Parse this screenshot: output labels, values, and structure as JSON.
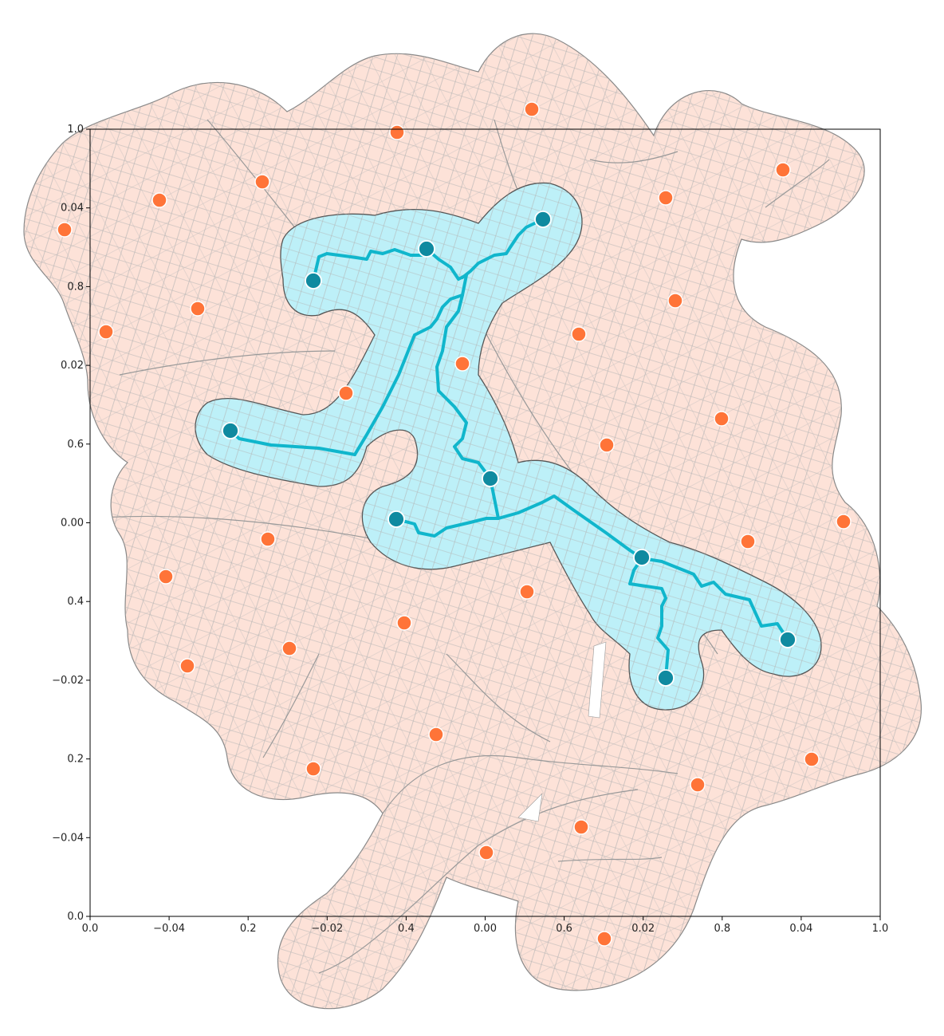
{
  "chart_data": {
    "type": "map",
    "title": "",
    "axes": [
      {
        "name": "axes-unit",
        "x_ticks": [
          "0.0",
          "0.2",
          "0.4",
          "0.6",
          "0.8",
          "1.0"
        ],
        "y_ticks": [
          "0.0",
          "0.2",
          "0.4",
          "0.6",
          "0.8",
          "1.0"
        ]
      },
      {
        "name": "axes-geo",
        "x_ticks": [
          "−0.04",
          "−0.02",
          "0.00",
          "0.02",
          "0.04"
        ],
        "y_ticks": [
          "−0.04",
          "−0.02",
          "0.00",
          "0.02",
          "0.04"
        ]
      }
    ],
    "colors": {
      "outer_zone_fill": "#fde2d8",
      "inner_zone_fill": "#bdf0f8",
      "zone_edge": "#888888",
      "route": "#10b6cc",
      "hub": "#0f8aa0",
      "candidate": "#ff7438",
      "street": "#aaaaaa"
    },
    "selected_sites_count": 10,
    "candidate_sites_count": 32
  }
}
